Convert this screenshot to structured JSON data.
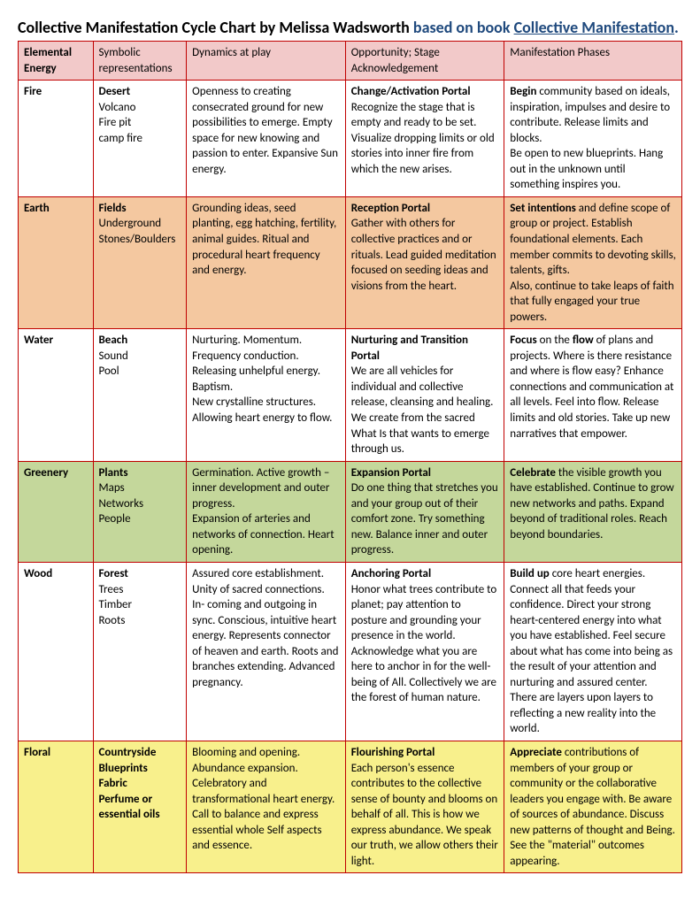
{
  "title": {
    "main": "Collective Manifestation Cycle Chart by Melissa Wadsworth",
    "based": " based on book ",
    "link": "Collective Manifestation",
    "trailing": "."
  },
  "headers": {
    "energy": "Elemental Energy",
    "symbolic": "Symbolic representations",
    "dynamics": "Dynamics at play",
    "opportunity": "Opportunity; Stage Acknowledgement",
    "phases": "Manifestation Phases"
  },
  "rows": {
    "fire": {
      "energy": "Fire",
      "symbolic_bold": "Desert",
      "symbolic_rest": "Volcano\nFire pit\ncamp fire",
      "dynamics": "Openness to creating consecrated ground for new possibilities to emerge. Empty space for new knowing and passion to enter. Expansive Sun energy.",
      "opp_bold": "Change/Activation Portal",
      "opp_rest": "Recognize the stage that is empty and ready to be set. Visualize dropping limits or old stories into inner fire from which the new arises.",
      "phase_bold": "Begin",
      "phase_rest": " community based on ideals, inspiration, impulses and desire to contribute. Release limits and blocks.\nBe open to new blueprints. Hang out in the unknown until something inspires you."
    },
    "earth": {
      "energy": "Earth",
      "symbolic_bold": "Fields",
      "symbolic_rest": "Underground\nStones/Boulders",
      "dynamics": "Grounding ideas, seed planting, egg hatching, fertility, animal guides. Ritual and procedural heart frequency and energy.",
      "opp_bold": "Reception Portal",
      "opp_rest": "Gather with others for collective practices and or rituals. Lead guided meditation focused on seeding ideas and visions from the heart.",
      "phase_bold": "Set intentions",
      "phase_rest": " and define scope of group or project. Establish foundational elements. Each member commits to devoting skills, talents, gifts.\nAlso, continue to take leaps of faith that fully engaged your true powers."
    },
    "water": {
      "energy": "Water",
      "symbolic_bold": "Beach",
      "symbolic_rest": "Sound\nPool",
      "dynamics": "Nurturing. Momentum. Frequency conduction. Releasing unhelpful energy. Baptism.\nNew crystalline structures. Allowing heart energy to flow.",
      "opp_bold": "Nurturing and Transition Portal",
      "opp_rest": "We are all vehicles for individual and collective release, cleansing and healing. We create from the sacred What Is that wants to emerge through us.",
      "phase_b1": "Focus",
      "phase_m1": " on the ",
      "phase_b2": "flow",
      "phase_rest": " of plans and projects. Where is there resistance and where is flow easy? Enhance connections and communication at all levels. Feel into flow. Release limits and old stories. Take up new narratives that empower."
    },
    "greenery": {
      "energy": "Greenery",
      "symbolic_bold": "Plants",
      "symbolic_rest": "Maps\nNetworks\nPeople",
      "dynamics": "Germination. Active growth – inner development and outer progress.\nExpansion of arteries and networks of connection. Heart opening.",
      "opp_bold": "Expansion Portal",
      "opp_rest": "Do one thing that stretches you and your group out of their comfort zone. Try something new. Balance inner and outer progress.",
      "phase_bold": "Celebrate",
      "phase_rest": " the visible growth you have established. Continue to grow new networks and paths. Expand beyond of traditional roles. Reach beyond boundaries."
    },
    "wood": {
      "energy": "Wood",
      "symbolic_bold": "Forest",
      "symbolic_rest": "Trees\nTimber\nRoots",
      "dynamics": "Assured core establishment. Unity of sacred connections.\nIn- coming and outgoing in sync. Conscious, intuitive heart energy. Represents connector of heaven and earth. Roots and branches extending. Advanced pregnancy.",
      "opp_bold": "Anchoring Portal",
      "opp_rest": "Honor what trees contribute to planet; pay attention to posture and grounding your presence in the world. Acknowledge what you are here to anchor in for the well-being of All. Collectively we are the forest of human nature.",
      "phase_bold": "Build up",
      "phase_rest": " core heart energies. Connect all that feeds your confidence. Direct your strong heart-centered energy into what you have established. Feel secure about what has come into being as the result of your attention and nurturing and assured center.  There are layers upon layers to reflecting a new reality into the world."
    },
    "floral": {
      "energy": "Floral",
      "symbolic_bold": "Countryside\nBlueprints\nFabric\nPerfume or essential oils",
      "symbolic_rest": "",
      "dynamics": "Blooming and opening. Abundance expansion. Celebratory and transformational heart energy. Call to balance and express essential whole Self aspects and essence.",
      "opp_bold": "Flourishing Portal",
      "opp_rest": "Each person's essence contributes to the collective sense of bounty and blooms on behalf of all. This is how we express abundance. We speak our truth, we allow others their light.",
      "phase_bold": "Appreciate",
      "phase_rest": " contributions of members of your group or community or the collaborative leaders you engage with. Be aware of sources of abundance. Discuss new patterns of thought and Being. See the \"material\" outcomes appearing."
    }
  }
}
